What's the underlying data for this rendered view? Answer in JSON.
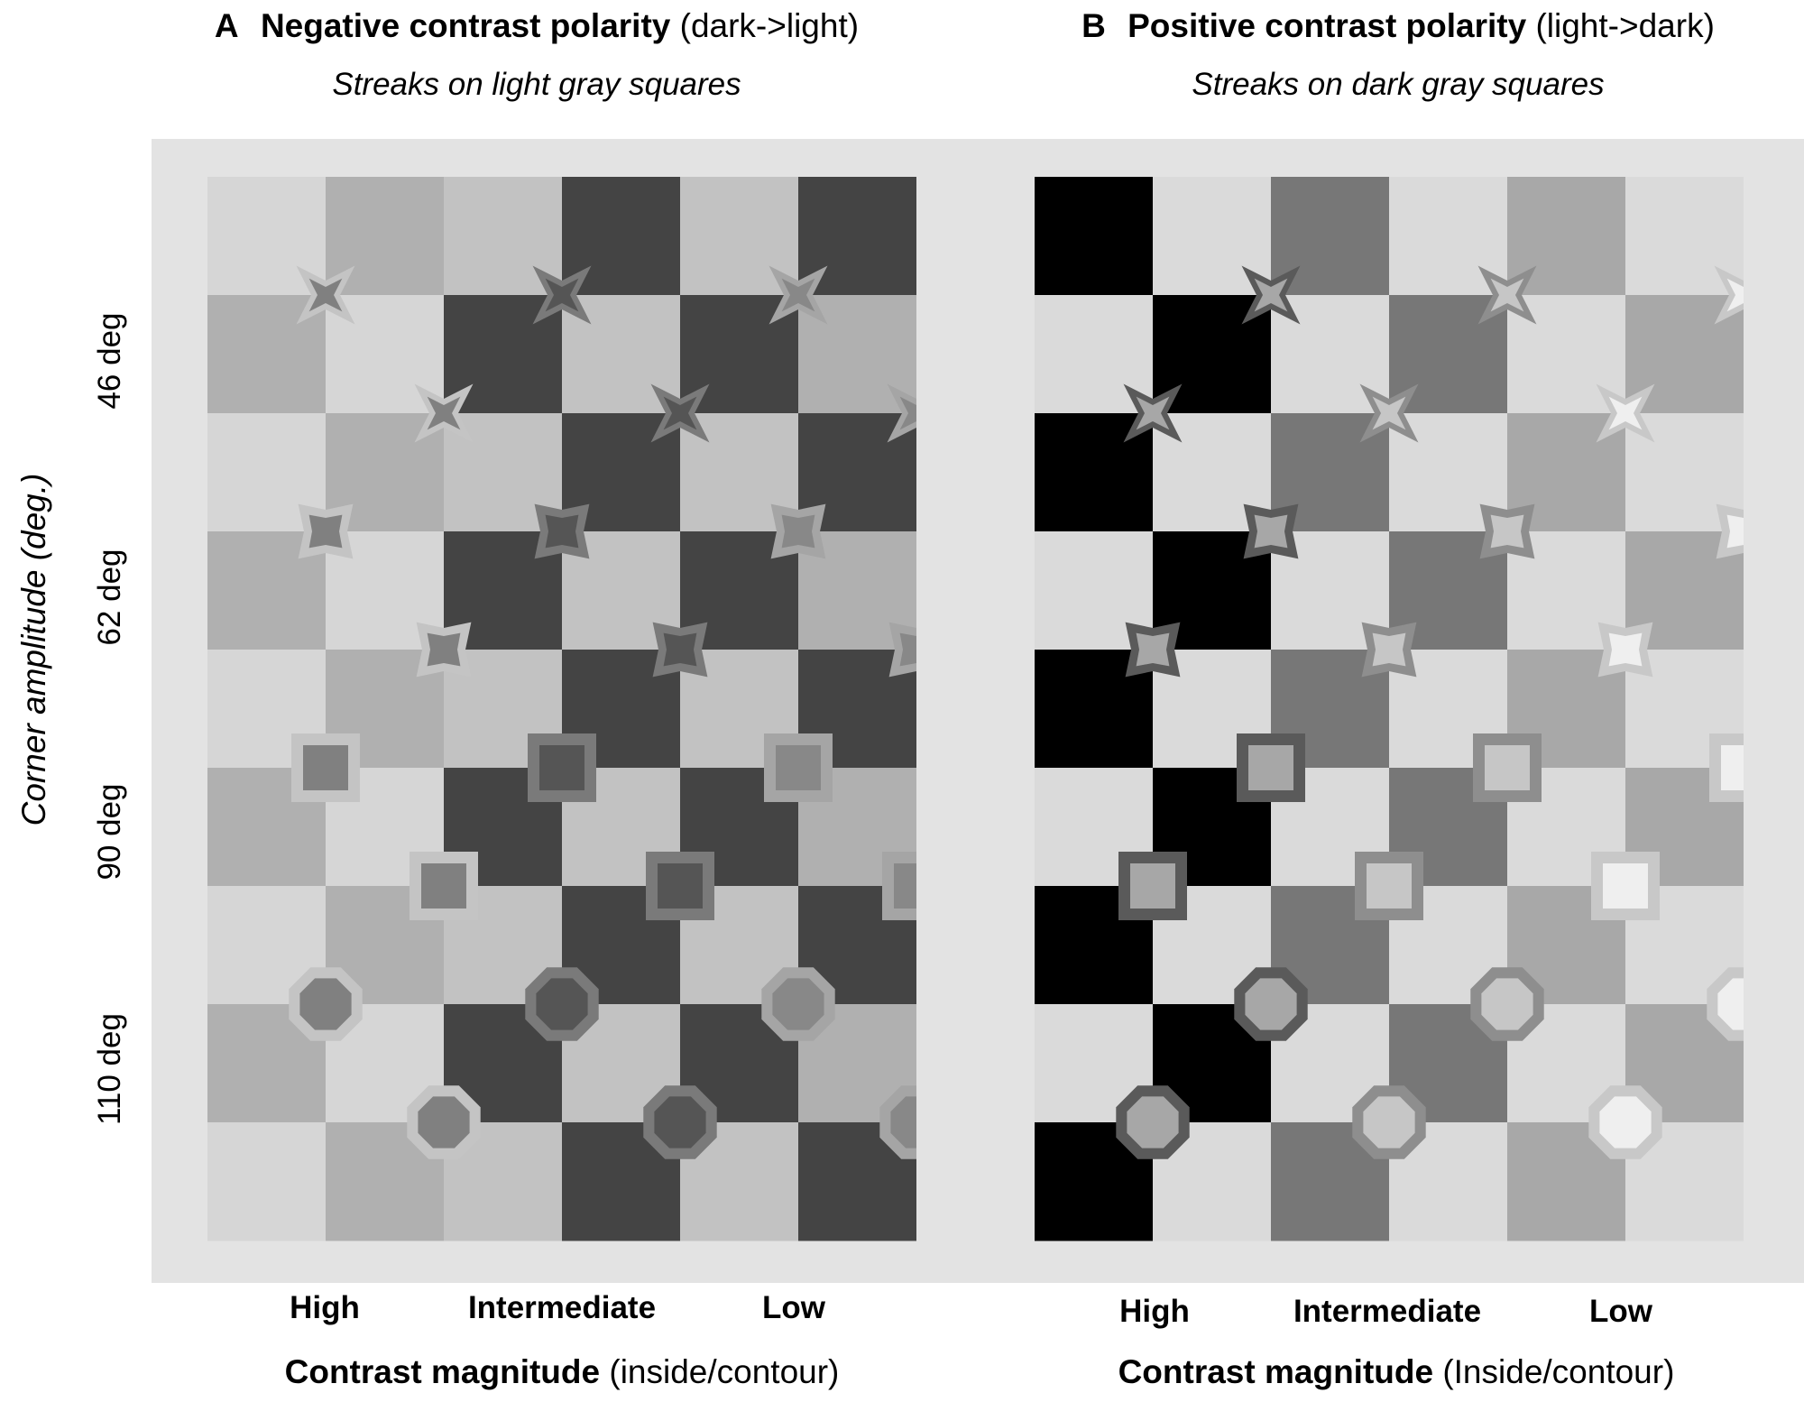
{
  "panels": [
    {
      "letter": "A",
      "title_bold": "Negative contrast polarity",
      "title_rest": "(dark->light)",
      "subtitle": "Streaks on light gray squares",
      "columns": [
        "High",
        "Intermediate",
        "Low"
      ],
      "xlabel_bold": "Contrast magnitude",
      "xlabel_rest": "(inside/contour)"
    },
    {
      "letter": "B",
      "title_bold": "Positive contrast polarity",
      "title_rest": "(light->dark)",
      "subtitle": "Streaks on dark gray squares",
      "columns": [
        "High",
        "Intermediate",
        "Low"
      ],
      "xlabel_bold": "Contrast magnitude",
      "xlabel_rest": "(Inside/contour)"
    }
  ],
  "y_axis_title": "Corner amplitude (deg.)",
  "rows": [
    "46 deg",
    "62 deg",
    "90 deg",
    "110 deg"
  ],
  "colors": {
    "background": "#e3e3e3",
    "board_A": {
      "light": "#d6d6d6",
      "mid": "#c2c2c2",
      "medium": "#b0b0b0",
      "dark": "#444444"
    },
    "board_B": {
      "light": "#dadada",
      "dark_gray": "#5e5e5e",
      "medium": "#777777",
      "pale": "#a8a8a8"
    },
    "shapes_A": {
      "high": {
        "fill": "#808080",
        "stroke": "#c4c4c4"
      },
      "intermediate": {
        "fill": "#555555",
        "stroke": "#7a7a7a"
      },
      "low": {
        "fill": "#888888",
        "stroke": "#a5a5a5"
      }
    },
    "shapes_B": {
      "high": {
        "fill": "#a7a7a7",
        "stroke": "#5a5a5a"
      },
      "intermediate": {
        "fill": "#c6c6c6",
        "stroke": "#8e8e8e"
      },
      "low": {
        "fill": "#efefef",
        "stroke": "#c8c8c8"
      }
    }
  },
  "board_A_columns": [
    "light-medium",
    "medium-light",
    "mid-dark",
    "dark-mid",
    "mid-dark",
    "dark-medium"
  ],
  "board_B_columns": [
    "dark-light",
    "light-dark",
    "medium-light",
    "light-medium",
    "pale-light",
    "light-pale"
  ],
  "shape_types": [
    "star46",
    "star62",
    "square90",
    "octagon110"
  ]
}
